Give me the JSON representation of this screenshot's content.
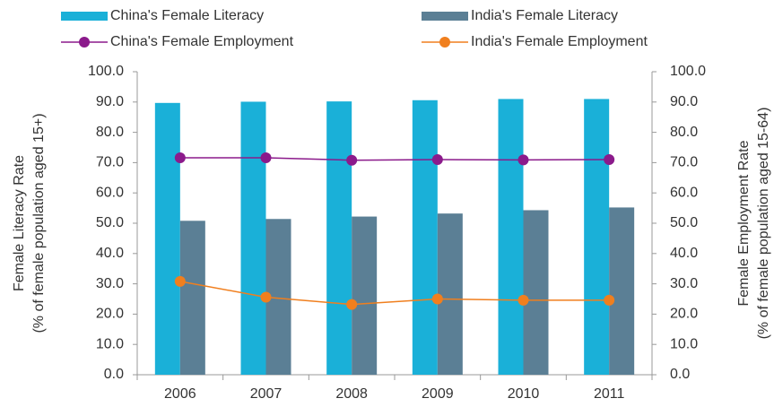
{
  "chart_data": {
    "type": "bar",
    "categories": [
      "2006",
      "2007",
      "2008",
      "2009",
      "2010",
      "2011"
    ],
    "series": [
      {
        "name": "China's Female Literacy",
        "type": "bar",
        "color": "#1ab0d8",
        "values": [
          89.7,
          90.1,
          90.2,
          90.6,
          91.0,
          91.0
        ]
      },
      {
        "name": "India's Female Literacy",
        "type": "bar",
        "color": "#5b7f95",
        "values": [
          50.8,
          51.4,
          52.2,
          53.2,
          54.3,
          55.2
        ]
      },
      {
        "name": "China's Female Employment",
        "type": "line",
        "axis": "y2",
        "color": "#8b1a8b",
        "values": [
          71.6,
          71.6,
          70.8,
          71.0,
          70.9,
          71.0
        ]
      },
      {
        "name": "India's Female Employment",
        "type": "line",
        "axis": "y2",
        "color": "#f07f1e",
        "values": [
          30.8,
          25.6,
          23.2,
          25.0,
          24.6,
          24.6
        ]
      }
    ],
    "ylabel": [
      "Female Literacy Rate",
      "(% of female population aged 15+)"
    ],
    "y2label": [
      "Female Employment Rate",
      "(% of female population  aged 15-64)"
    ],
    "ylim": [
      0,
      100
    ],
    "yticks": [
      {
        "value": 0,
        "label": "0.0"
      },
      {
        "value": 10,
        "label": "10.0"
      },
      {
        "value": 20,
        "label": "20.0"
      },
      {
        "value": 30,
        "label": "30.0"
      },
      {
        "value": 40,
        "label": "40.0"
      },
      {
        "value": 50,
        "label": "50.0"
      },
      {
        "value": 60,
        "label": "60.0"
      },
      {
        "value": 70,
        "label": "70.0"
      },
      {
        "value": 80,
        "label": "80.0"
      },
      {
        "value": 90,
        "label": "90.0"
      },
      {
        "value": 100,
        "label": "100.0"
      }
    ],
    "y2lim": [
      0,
      100
    ],
    "y2ticks": [
      {
        "value": 0,
        "label": "0.0"
      },
      {
        "value": 10,
        "label": "10.0"
      },
      {
        "value": 20,
        "label": "20.0"
      },
      {
        "value": 30,
        "label": "30.0"
      },
      {
        "value": 40,
        "label": "40.0"
      },
      {
        "value": 50,
        "label": "50.0"
      },
      {
        "value": 60,
        "label": "60.0"
      },
      {
        "value": 70,
        "label": "70.0"
      },
      {
        "value": 80,
        "label": "80.0"
      },
      {
        "value": 90,
        "label": "90.0"
      },
      {
        "value": 100,
        "label": "100.0"
      }
    ],
    "grid": false,
    "legend": "top"
  }
}
